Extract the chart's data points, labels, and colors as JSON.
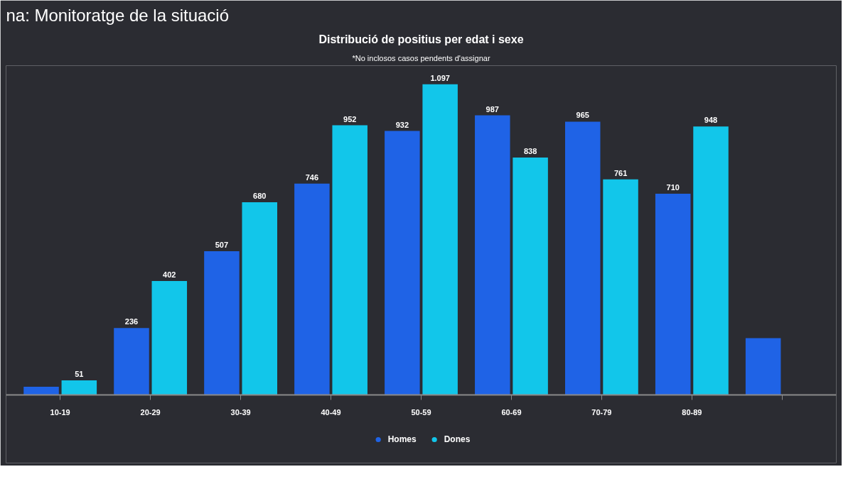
{
  "chart_data": {
    "type": "bar",
    "title": "Distribució de positius per edat i sexe",
    "subtitle": "*No inclosos casos pendents d'assignar",
    "annotations": [
      "na: Monitoratge de la situació"
    ],
    "categories": [
      "10-19",
      "20-29",
      "30-39",
      "40-49",
      "50-59",
      "60-69",
      "70-79",
      "80-89",
      null
    ],
    "series": [
      {
        "name": "Homes",
        "color": "#1f63e6",
        "values": [
          28,
          236,
          507,
          746,
          932,
          987,
          965,
          710,
          200
        ],
        "value_labels": [
          null,
          "236",
          "507",
          "746",
          "932",
          "987",
          "965",
          "710",
          null
        ]
      },
      {
        "name": "Dones",
        "color": "#12c6ea",
        "values": [
          51,
          402,
          680,
          952,
          1097,
          838,
          761,
          948,
          null
        ],
        "value_labels": [
          "51",
          "402",
          "680",
          "952",
          "1.097",
          "838",
          "761",
          "948",
          null
        ]
      }
    ],
    "grid": false,
    "legend": "bottom"
  }
}
